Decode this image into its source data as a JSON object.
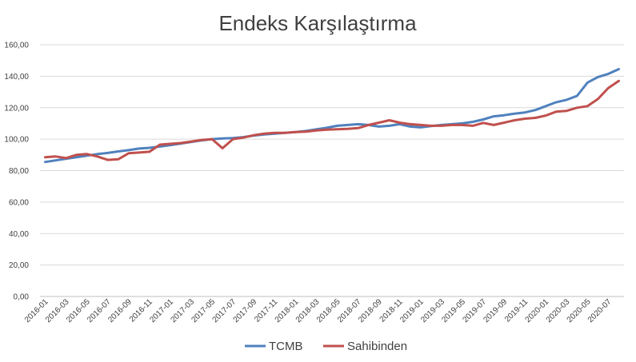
{
  "chart_data": {
    "type": "line",
    "title": "Endeks Karşılaştırma",
    "xlabel": "",
    "ylabel": "",
    "ylim": [
      0,
      160
    ],
    "y_ticks": [
      "0,00",
      "20,00",
      "40,00",
      "60,00",
      "80,00",
      "100,00",
      "120,00",
      "140,00",
      "160,00"
    ],
    "grid": "horizontal",
    "legend_position": "bottom",
    "x": [
      "2016-01",
      "2016-02",
      "2016-03",
      "2016-04",
      "2016-05",
      "2016-06",
      "2016-07",
      "2016-08",
      "2016-09",
      "2016-10",
      "2016-11",
      "2016-12",
      "2017-01",
      "2017-02",
      "2017-03",
      "2017-04",
      "2017-05",
      "2017-06",
      "2017-07",
      "2017-08",
      "2017-09",
      "2017-10",
      "2017-11",
      "2017-12",
      "2018-01",
      "2018-02",
      "2018-03",
      "2018-04",
      "2018-05",
      "2018-06",
      "2018-07",
      "2018-08",
      "2018-09",
      "2018-10",
      "2018-11",
      "2018-12",
      "2019-01",
      "2019-02",
      "2019-03",
      "2019-04",
      "2019-05",
      "2019-06",
      "2019-07",
      "2019-08",
      "2019-09",
      "2019-10",
      "2019-11",
      "2019-12",
      "2020-01",
      "2020-02",
      "2020-03",
      "2020-04",
      "2020-05",
      "2020-06",
      "2020-07",
      "2020-08"
    ],
    "x_tick_labels": [
      "2016-01",
      "2016-03",
      "2016-05",
      "2016-07",
      "2016-09",
      "2016-11",
      "2017-01",
      "2017-03",
      "2017-05",
      "2017-07",
      "2017-09",
      "2017-11",
      "2018-01",
      "2018-03",
      "2018-05",
      "2018-07",
      "2018-09",
      "2018-11",
      "2019-01",
      "2019-03",
      "2019-05",
      "2019-07",
      "2019-09",
      "2019-11",
      "2020-01",
      "2020-03",
      "2020-05",
      "2020-07"
    ],
    "series": [
      {
        "name": "TCMB",
        "color": "#4f81bd",
        "values": [
          85.5,
          86.5,
          87.5,
          88.5,
          89.5,
          90.5,
          91.2,
          92.2,
          93,
          94,
          94.5,
          95.3,
          96.2,
          97.2,
          98.2,
          99.2,
          100,
          100.4,
          100.7,
          101.3,
          102.3,
          103,
          103.5,
          104,
          104.5,
          105.2,
          106.2,
          107.2,
          108.5,
          109,
          109.5,
          109,
          108,
          108.5,
          109.5,
          108,
          107.5,
          108.3,
          109,
          109.5,
          110,
          111,
          112.5,
          114.5,
          115.2,
          116.2,
          117,
          118.5,
          121,
          123.5,
          125,
          127.5,
          136,
          139.5,
          141.5,
          144.5
        ]
      },
      {
        "name": "Sahibinden",
        "color": "#c0504d",
        "values": [
          88.5,
          89,
          88,
          90,
          90.5,
          89,
          86.8,
          87.2,
          91,
          91.5,
          92,
          96.5,
          97,
          97.5,
          98.5,
          99.5,
          100,
          94.2,
          100,
          101,
          102.5,
          103.5,
          104,
          104,
          104.5,
          104.8,
          105.5,
          106,
          106.3,
          106.5,
          107,
          109,
          110.5,
          112,
          110.5,
          109.5,
          109,
          108.5,
          108.5,
          109,
          109,
          108.5,
          110.3,
          109,
          110.5,
          112,
          113,
          113.5,
          115,
          117.5,
          118,
          120,
          121,
          125.5,
          132.5,
          137
        ]
      }
    ]
  }
}
